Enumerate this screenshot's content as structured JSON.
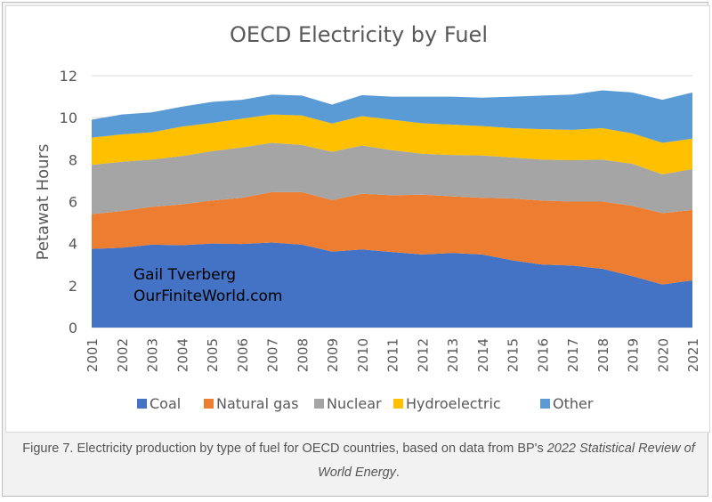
{
  "chart_data": {
    "type": "area",
    "stacked": true,
    "title": "OECD Electricity by Fuel",
    "ylabel": "Petawat Hours",
    "xlabel": "",
    "ylim": [
      0,
      12
    ],
    "yticks": [
      0,
      2,
      4,
      6,
      8,
      10,
      12
    ],
    "grid": true,
    "legend_position": "bottom",
    "categories": [
      "2001",
      "2002",
      "2003",
      "2004",
      "2005",
      "2006",
      "2007",
      "2008",
      "2009",
      "2010",
      "2011",
      "2012",
      "2013",
      "2014",
      "2015",
      "2016",
      "2017",
      "2018",
      "2019",
      "2020",
      "2021"
    ],
    "series": [
      {
        "name": "Coal",
        "color": "#4472C4",
        "values": [
          3.75,
          3.8,
          3.95,
          3.92,
          4.0,
          3.98,
          4.05,
          3.95,
          3.62,
          3.72,
          3.6,
          3.48,
          3.55,
          3.48,
          3.2,
          3.0,
          2.95,
          2.8,
          2.45,
          2.05,
          2.25
        ]
      },
      {
        "name": "Natural gas",
        "color": "#ED7D31",
        "values": [
          1.65,
          1.75,
          1.8,
          1.95,
          2.05,
          2.2,
          2.4,
          2.5,
          2.45,
          2.65,
          2.7,
          2.85,
          2.7,
          2.7,
          2.95,
          3.05,
          3.05,
          3.2,
          3.35,
          3.4,
          3.35
        ]
      },
      {
        "name": "Nuclear",
        "color": "#A5A5A5",
        "values": [
          2.35,
          2.35,
          2.25,
          2.3,
          2.35,
          2.4,
          2.35,
          2.25,
          2.3,
          2.3,
          2.15,
          1.95,
          1.97,
          2.02,
          1.95,
          1.95,
          1.97,
          2.0,
          2.0,
          1.85,
          1.95
        ]
      },
      {
        "name": "Hydroelectric",
        "color": "#FFC000",
        "values": [
          1.3,
          1.3,
          1.3,
          1.4,
          1.35,
          1.37,
          1.35,
          1.4,
          1.35,
          1.4,
          1.45,
          1.45,
          1.45,
          1.4,
          1.4,
          1.45,
          1.45,
          1.5,
          1.45,
          1.5,
          1.45
        ]
      },
      {
        "name": "Other",
        "color": "#5B9BD5",
        "values": [
          0.85,
          0.95,
          0.95,
          0.95,
          1.0,
          0.9,
          0.95,
          0.95,
          0.9,
          1.0,
          1.1,
          1.27,
          1.33,
          1.35,
          1.5,
          1.6,
          1.68,
          1.8,
          1.95,
          2.05,
          2.2
        ]
      }
    ],
    "annotations": [
      "Gail Tverberg",
      "OurFiniteWorld.com"
    ]
  },
  "caption": {
    "text_before": "Figure 7. Electricity production by type of fuel for OECD countries, based on data from BP's ",
    "italic": "2022 Statistical Review of World Energy",
    "text_after": "."
  }
}
